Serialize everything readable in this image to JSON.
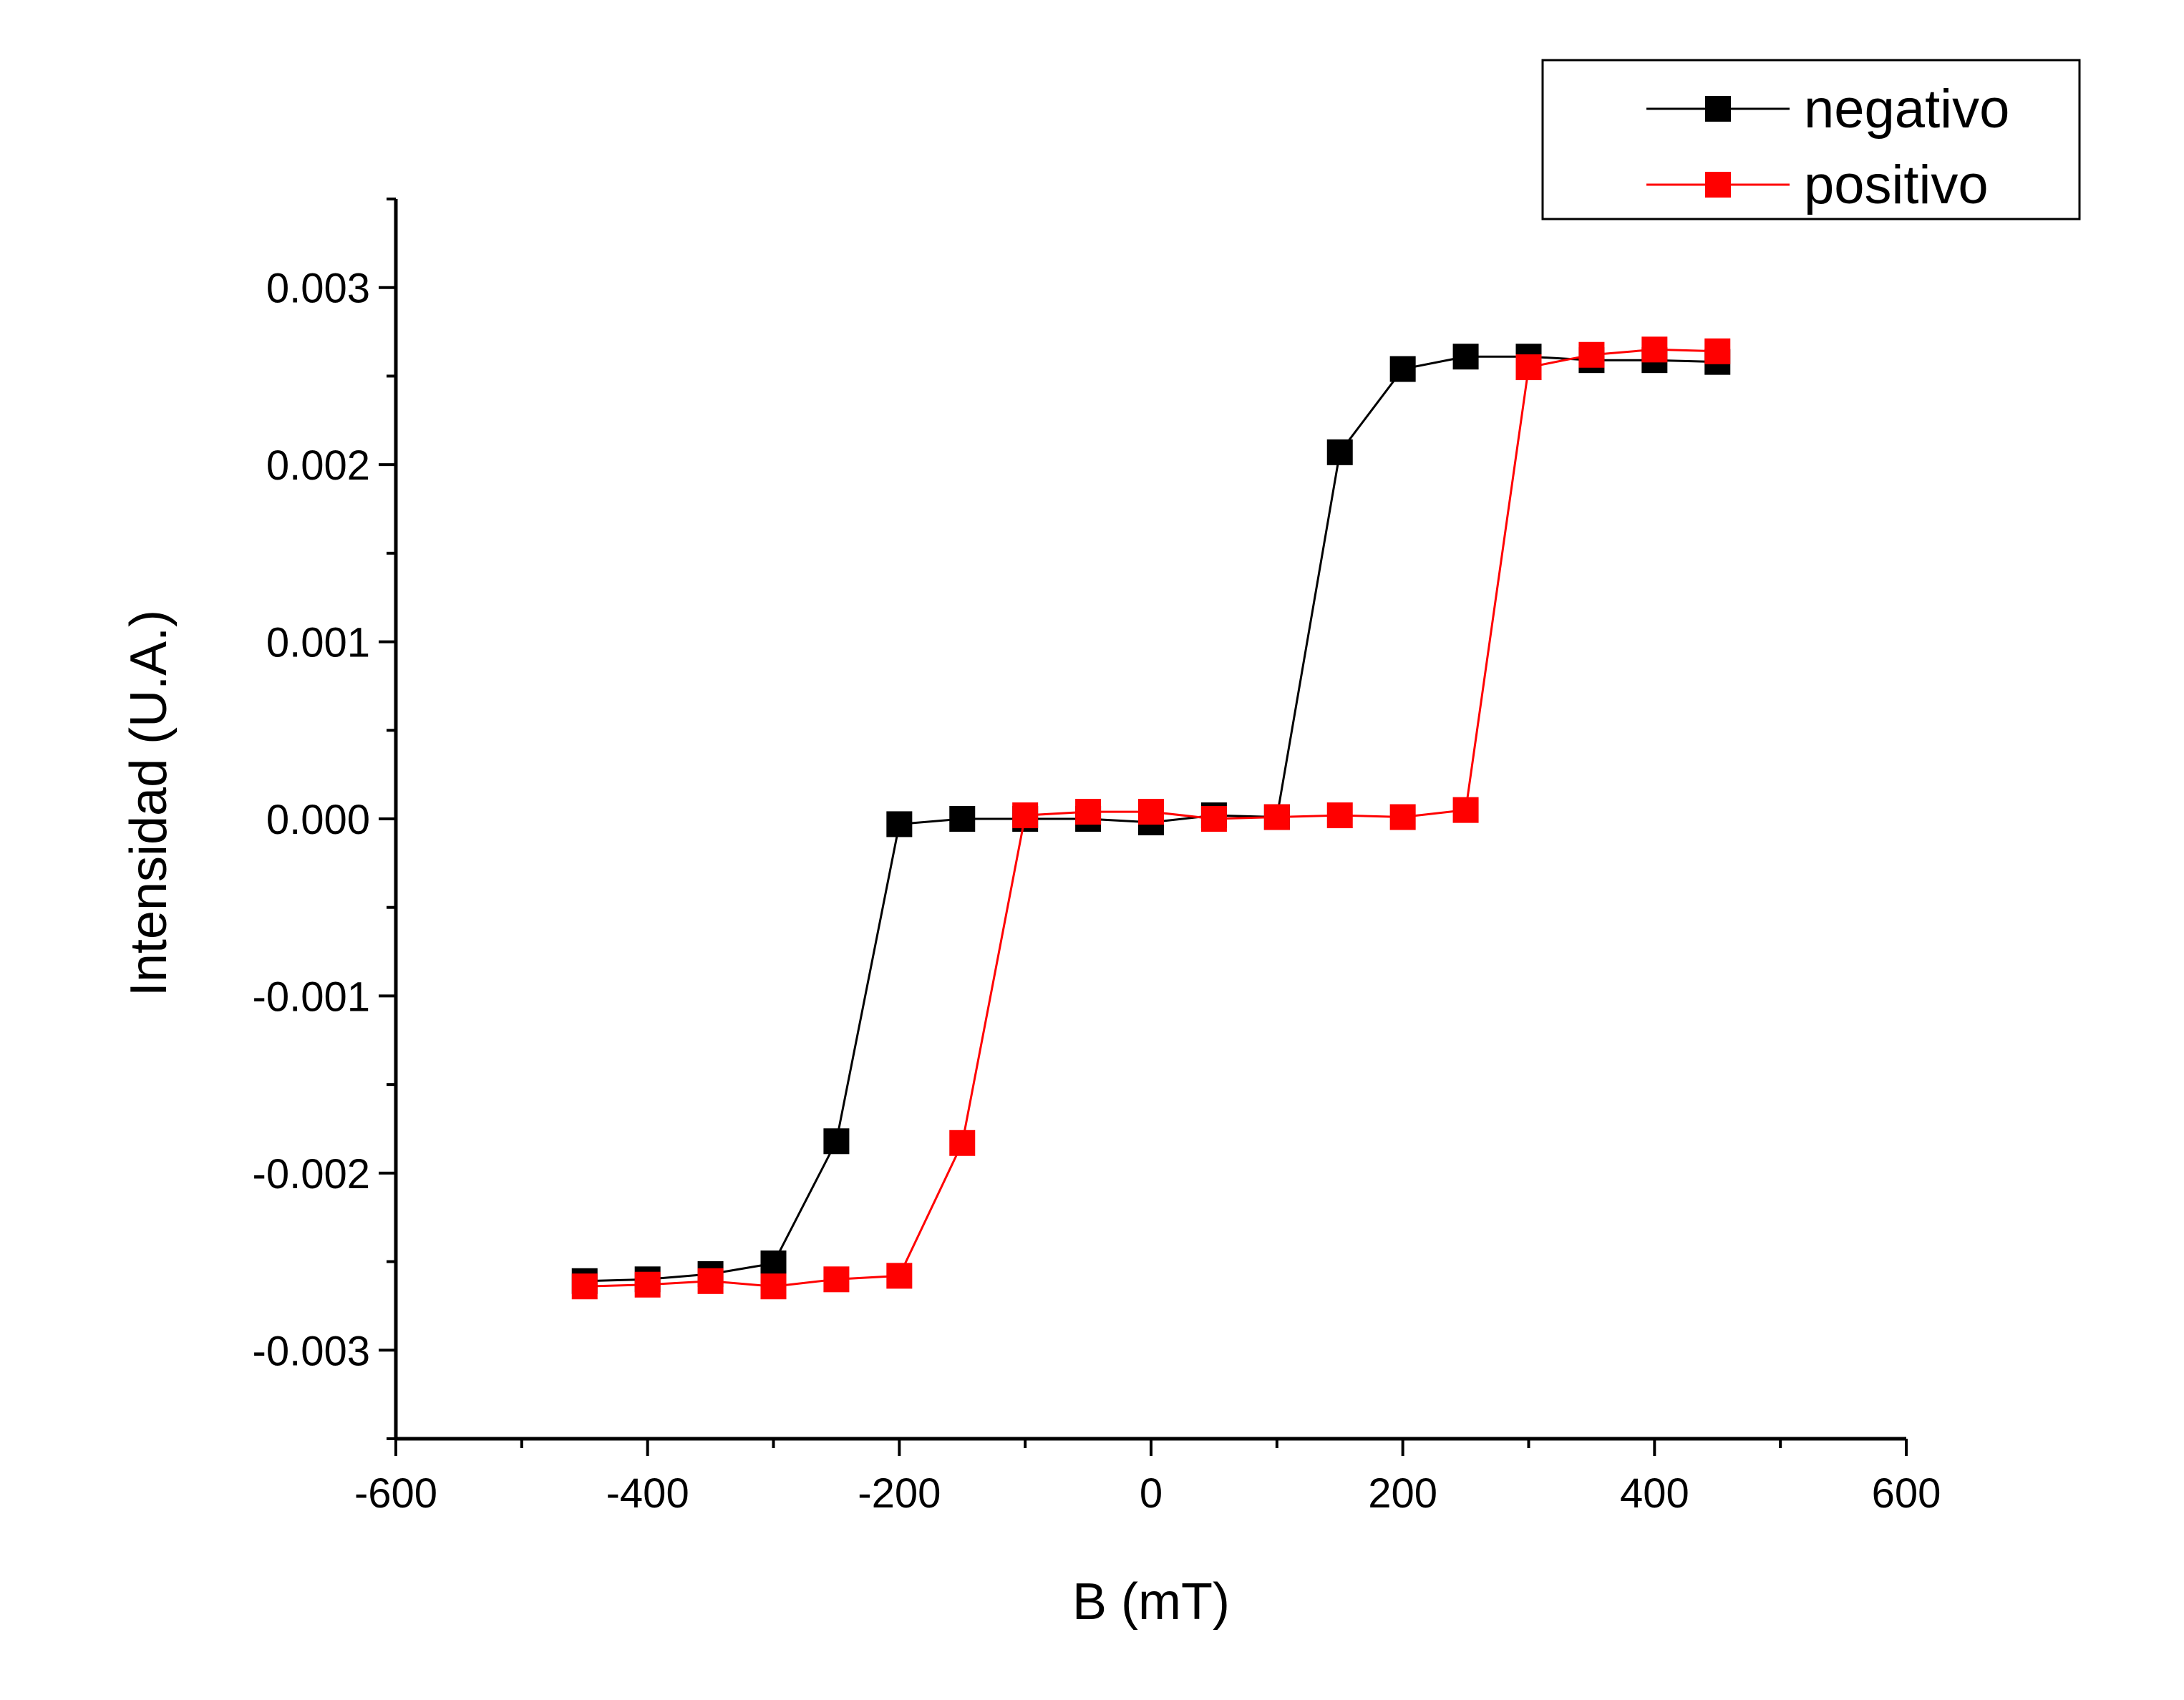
{
  "chart_data": {
    "type": "line",
    "title": "",
    "xlabel": "B (mT)",
    "ylabel": "Intensidad (U.A.)",
    "xlim": [
      -600,
      600
    ],
    "ylim": [
      -0.0035,
      0.0035
    ],
    "x_ticks": [
      -600,
      -400,
      -200,
      0,
      200,
      400,
      600
    ],
    "x_tick_labels": [
      "-600",
      "-400",
      "-200",
      "0",
      "200",
      "400",
      "600"
    ],
    "y_ticks": [
      -0.003,
      -0.002,
      -0.001,
      0.0,
      0.001,
      0.002,
      0.003
    ],
    "y_tick_labels": [
      "-0.003",
      "-0.002",
      "-0.001",
      "0.000",
      "0.001",
      "0.002",
      "0.003"
    ],
    "grid": false,
    "legend_position": "top-right",
    "series": [
      {
        "name": "negativo",
        "color": "#000000",
        "marker": "square",
        "x": [
          -450,
          -400,
          -350,
          -300,
          -250,
          -200,
          -150,
          -100,
          -50,
          0,
          50,
          100,
          150,
          200,
          250,
          300,
          350,
          400,
          450
        ],
        "y": [
          -0.00261,
          -0.0026,
          -0.00257,
          -0.00251,
          -0.00182,
          -3e-05,
          0.0,
          0.0,
          0.0,
          -2e-05,
          2e-05,
          1e-05,
          0.00207,
          0.00254,
          0.00261,
          0.00261,
          0.00259,
          0.00259,
          0.00258
        ]
      },
      {
        "name": "positivo",
        "color": "#ff0000",
        "marker": "square",
        "x": [
          -450,
          -400,
          -350,
          -300,
          -250,
          -200,
          -150,
          -100,
          -50,
          0,
          50,
          100,
          150,
          200,
          250,
          300,
          350,
          400,
          450
        ],
        "y": [
          -0.00264,
          -0.00263,
          -0.00261,
          -0.00264,
          -0.0026,
          -0.00258,
          -0.00183,
          2e-05,
          4e-05,
          4e-05,
          0.0,
          1e-05,
          2e-05,
          1e-05,
          5e-05,
          0.00255,
          0.00262,
          0.00265,
          0.00264
        ]
      }
    ]
  }
}
